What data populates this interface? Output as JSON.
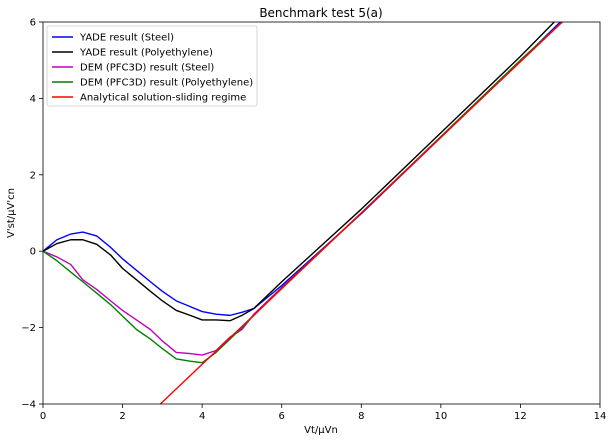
{
  "chart_data": {
    "type": "line",
    "title": "Benchmark test 5(a)",
    "xlabel": "Vt/μVn",
    "ylabel": "V'st/μV'cn",
    "xlim": [
      0,
      14
    ],
    "ylim": [
      -4,
      6
    ],
    "xticks": [
      0,
      2,
      4,
      6,
      8,
      10,
      12,
      14
    ],
    "yticks": [
      -4,
      -2,
      0,
      2,
      4,
      6
    ],
    "grid": false,
    "legend_position": "top-left",
    "series": [
      {
        "name": "YADE result (Steel)",
        "color": "#0000ff",
        "x": [
          0,
          0.35,
          0.7,
          1.0,
          1.35,
          1.7,
          2.0,
          2.35,
          2.7,
          3.0,
          3.35,
          3.7,
          4.0,
          4.35,
          4.7,
          5.0,
          5.3,
          6.0,
          8.0,
          10.0,
          12.0,
          13.0
        ],
        "y": [
          0,
          0.3,
          0.45,
          0.5,
          0.4,
          0.1,
          -0.2,
          -0.5,
          -0.8,
          -1.05,
          -1.3,
          -1.45,
          -1.58,
          -1.65,
          -1.68,
          -1.6,
          -1.5,
          -0.9,
          0.98,
          2.98,
          4.98,
          6.0
        ]
      },
      {
        "name": "YADE result (Polyethylene)",
        "color": "#000000",
        "x": [
          0,
          0.35,
          0.7,
          1.0,
          1.35,
          1.7,
          2.0,
          2.35,
          2.7,
          3.0,
          3.35,
          3.7,
          4.0,
          4.35,
          4.7,
          5.0,
          5.3,
          6.0,
          8.0,
          10.0,
          12.0,
          12.85
        ],
        "y": [
          0,
          0.2,
          0.3,
          0.3,
          0.18,
          -0.1,
          -0.45,
          -0.75,
          -1.05,
          -1.3,
          -1.55,
          -1.68,
          -1.8,
          -1.8,
          -1.82,
          -1.68,
          -1.5,
          -0.8,
          1.1,
          3.1,
          5.1,
          6.0
        ]
      },
      {
        "name": "DEM (PFC3D) result (Steel)",
        "color": "#bf00bf",
        "x": [
          0,
          0.35,
          0.7,
          1.0,
          1.35,
          1.7,
          2.0,
          2.35,
          2.7,
          3.0,
          3.35,
          3.7,
          4.0,
          4.35,
          4.7,
          5.0,
          5.3,
          6.0,
          8.0,
          10.0,
          12.0,
          13.05
        ],
        "y": [
          0,
          -0.15,
          -0.35,
          -0.75,
          -1.0,
          -1.3,
          -1.55,
          -1.8,
          -2.05,
          -2.35,
          -2.65,
          -2.68,
          -2.72,
          -2.6,
          -2.25,
          -2.05,
          -1.65,
          -0.95,
          1.0,
          3.0,
          5.0,
          6.0
        ]
      },
      {
        "name": "DEM (PFC3D) result (Polyethylene)",
        "color": "#008000",
        "x": [
          0,
          0.35,
          0.7,
          1.0,
          1.35,
          1.7,
          2.0,
          2.35,
          2.7,
          3.0,
          3.35,
          3.7,
          4.0,
          4.35,
          4.7,
          5.0,
          5.3,
          6.0,
          8.0,
          10.0,
          12.0,
          13.05
        ],
        "y": [
          0,
          -0.25,
          -0.55,
          -0.8,
          -1.1,
          -1.4,
          -1.7,
          -2.05,
          -2.3,
          -2.55,
          -2.82,
          -2.88,
          -2.92,
          -2.65,
          -2.3,
          -2.0,
          -1.68,
          -0.97,
          1.0,
          3.0,
          5.0,
          6.0
        ]
      },
      {
        "name": "Analytical solution-sliding regime",
        "color": "#ff0000",
        "x": [
          2.95,
          13.05
        ],
        "y": [
          -4.0,
          6.0
        ]
      }
    ]
  }
}
